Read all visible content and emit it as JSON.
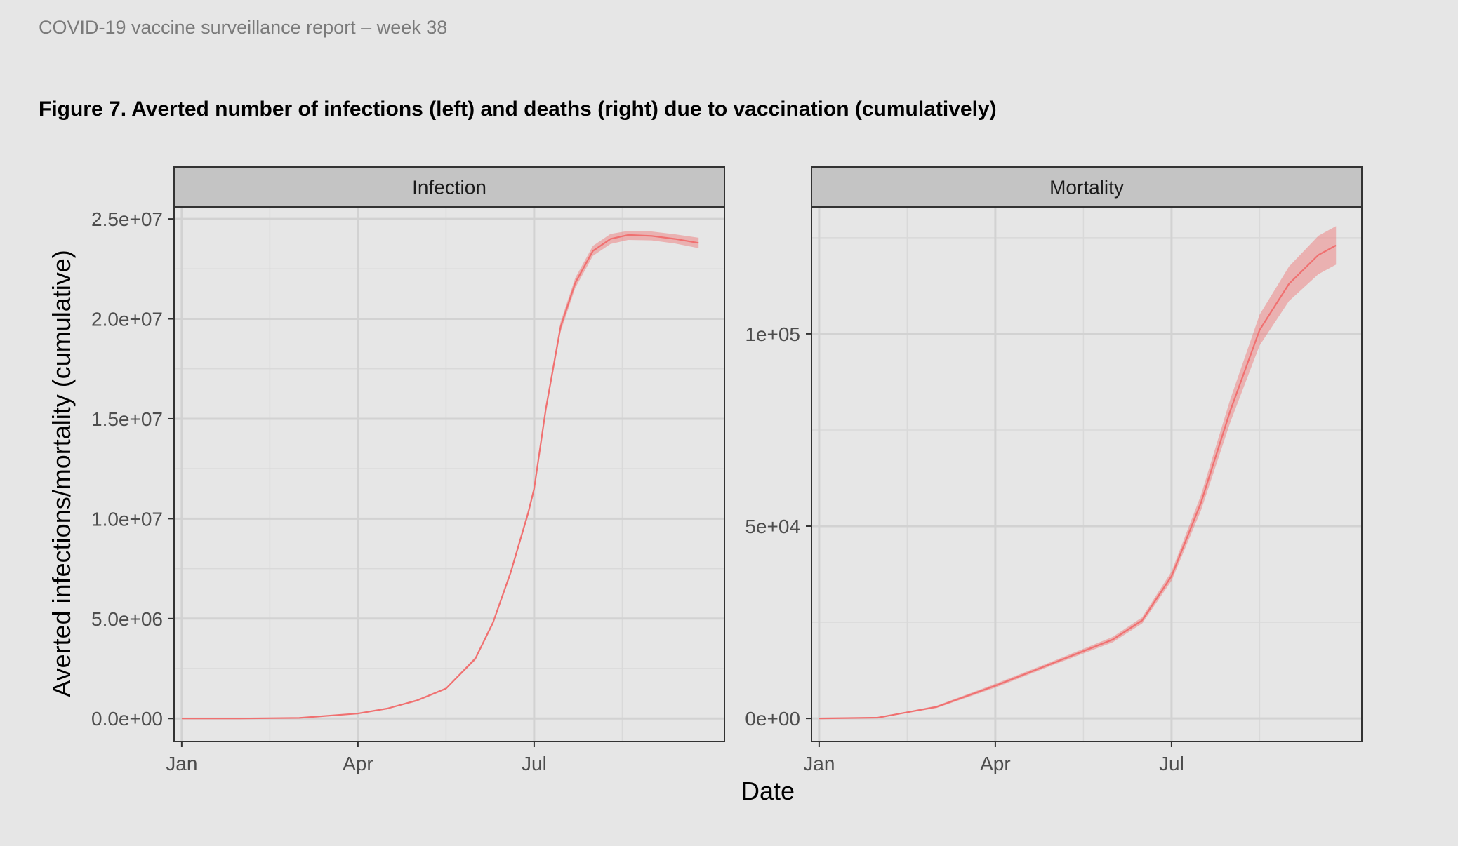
{
  "report": {
    "header": "COVID-19 vaccine surveillance report – week 38",
    "figure_title": "Figure 7. Averted number of infections (left) and deaths (right) due to vaccination (cumulatively)"
  },
  "chart_data": [
    {
      "type": "area",
      "panel": "Infection",
      "xlabel": "Date",
      "ylabel": "Averted infections/mortality (cumulative)",
      "x_tick_labels": [
        "Jan",
        "Apr",
        "Jul"
      ],
      "x_tick_months": [
        0,
        3,
        6
      ],
      "x_range_months": [
        -0.13,
        9.24
      ],
      "y_tick_labels": [
        "0.0e+00",
        "5.0e+06",
        "1.0e+07",
        "1.5e+07",
        "2.0e+07",
        "2.5e+07"
      ],
      "y_ticks": [
        0,
        5000000,
        10000000,
        15000000,
        20000000,
        25000000
      ],
      "ylim": [
        -1150000,
        25600000
      ],
      "grid": true,
      "color": "#f07070",
      "series": [
        {
          "x_month": [
            0,
            1,
            2,
            3,
            3.5,
            4,
            4.5,
            5,
            5.3,
            5.6,
            5.9,
            6.0,
            6.2,
            6.45,
            6.7,
            7.0,
            7.3,
            7.6,
            8.0,
            8.4,
            8.8
          ],
          "y": [
            0,
            0,
            30000,
            250000,
            500000,
            900000,
            1500000,
            3000000,
            4800000,
            7300000,
            10300000,
            11500000,
            15500000,
            19600000,
            21800000,
            23400000,
            24000000,
            24200000,
            24150000,
            24000000,
            23800000
          ],
          "upper": [
            0,
            0,
            40000,
            270000,
            530000,
            950000,
            1550000,
            3080000,
            4900000,
            7420000,
            10450000,
            11650000,
            15700000,
            19850000,
            22050000,
            23650000,
            24250000,
            24400000,
            24370000,
            24230000,
            24060000
          ],
          "lower": [
            0,
            0,
            20000,
            230000,
            470000,
            850000,
            1450000,
            2920000,
            4700000,
            7180000,
            10150000,
            11350000,
            15300000,
            19350000,
            21550000,
            23150000,
            23750000,
            23950000,
            23930000,
            23770000,
            23540000
          ]
        }
      ]
    },
    {
      "type": "area",
      "panel": "Mortality",
      "xlabel": "Date",
      "ylabel": "Averted infections/mortality (cumulative)",
      "x_tick_labels": [
        "Jan",
        "Apr",
        "Jul"
      ],
      "x_tick_months": [
        0,
        3,
        6
      ],
      "x_range_months": [
        -0.13,
        9.24
      ],
      "y_tick_labels": [
        "0e+00",
        "5e+04",
        "1e+05"
      ],
      "y_ticks": [
        0,
        50000,
        100000
      ],
      "ylim": [
        -6000,
        133000
      ],
      "grid": true,
      "color": "#f07070",
      "series": [
        {
          "x_month": [
            0,
            1,
            2,
            3,
            4,
            5,
            5.5,
            6,
            6.5,
            7,
            7.5,
            8,
            8.5,
            8.8
          ],
          "y": [
            0,
            200,
            3000,
            8500,
            14500,
            20500,
            25500,
            37000,
            56000,
            80000,
            101000,
            113000,
            120500,
            123000
          ],
          "upper": [
            0,
            250,
            3300,
            9000,
            15000,
            21200,
            26300,
            38200,
            58000,
            83000,
            105000,
            117500,
            125500,
            128000
          ],
          "lower": [
            0,
            150,
            2700,
            8000,
            14000,
            19800,
            24700,
            35800,
            54000,
            77000,
            97000,
            108500,
            115500,
            118000
          ]
        }
      ]
    }
  ]
}
